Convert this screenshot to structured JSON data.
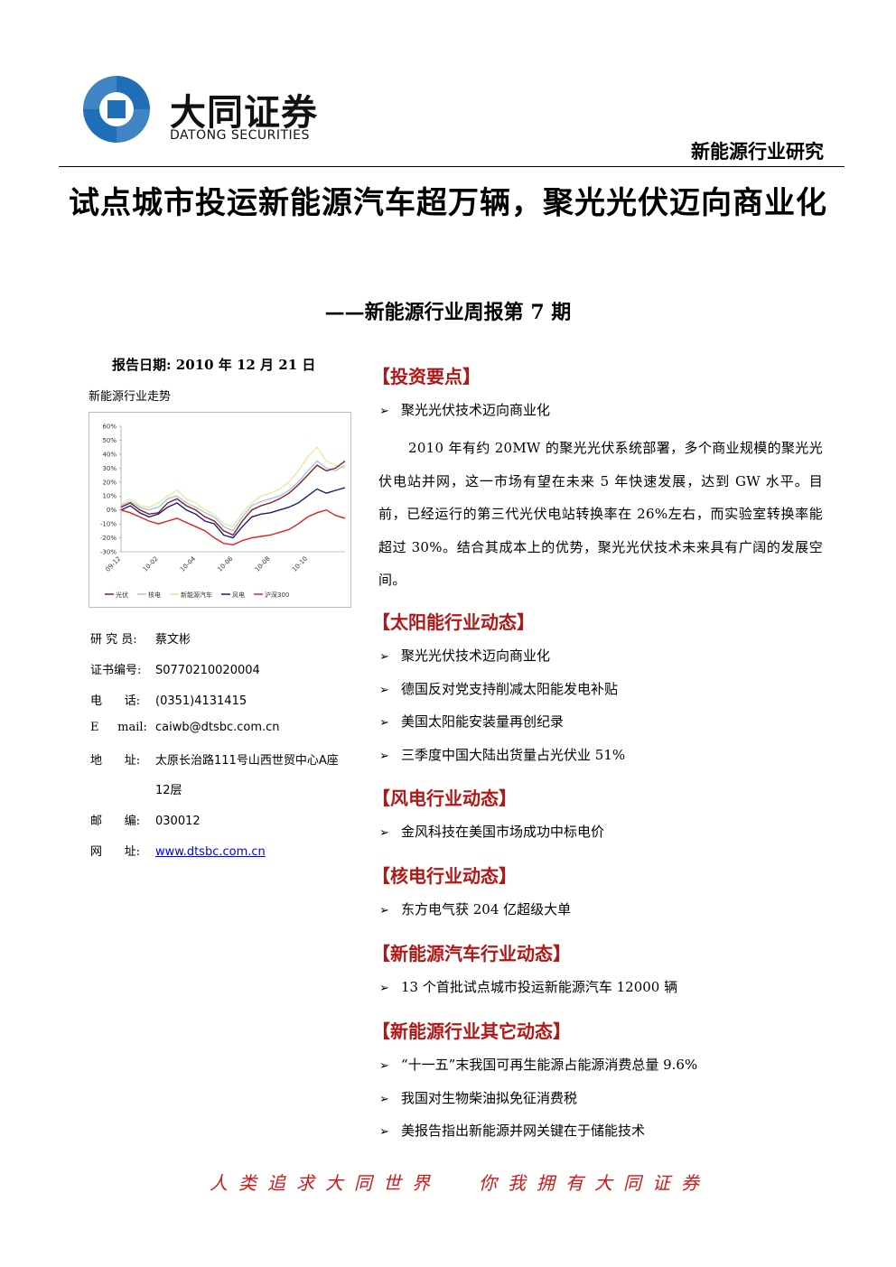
{
  "header": {
    "logo_cn": "大同证券",
    "logo_en": "DATONG SECURITIES",
    "category": "新能源行业研究"
  },
  "title": "试点城市投运新能源汽车超万辆，聚光光伏迈向商业化",
  "subtitle": "——新能源行业周报第 7 期",
  "report_date": "报告日期: 2010 年 12 月 21 日",
  "chart_caption": "新能源行业走势",
  "chart_data": {
    "type": "line",
    "categories": [
      "09-12",
      null,
      null,
      null,
      "10-02",
      null,
      null,
      null,
      "10-04",
      null,
      null,
      null,
      "10-06",
      null,
      null,
      null,
      "10-08",
      null,
      null,
      null,
      "10-10",
      null,
      null,
      null,
      null
    ],
    "ylim": [
      -30,
      60
    ],
    "yticks": [
      {
        "value": 60,
        "label": "60%"
      },
      {
        "value": 50,
        "label": "50%"
      },
      {
        "value": 40,
        "label": "40%"
      },
      {
        "value": 30,
        "label": "30%"
      },
      {
        "value": 20,
        "label": "20%"
      },
      {
        "value": 10,
        "label": "10%"
      },
      {
        "value": 0,
        "label": "0%"
      },
      {
        "value": -10,
        "label": "-10%"
      },
      {
        "value": -20,
        "label": "-20%"
      },
      {
        "value": -30,
        "label": "-30%"
      }
    ],
    "series": [
      {
        "name": "光伏",
        "color": "#8b1a1a",
        "values": [
          2,
          5,
          0,
          -3,
          -2,
          5,
          8,
          3,
          0,
          -5,
          -8,
          -15,
          -18,
          -8,
          0,
          3,
          5,
          8,
          12,
          18,
          25,
          32,
          28,
          30,
          35
        ]
      },
      {
        "name": "核电",
        "color": "#9ec8f0",
        "values": [
          3,
          6,
          2,
          0,
          2,
          8,
          10,
          5,
          2,
          -2,
          -5,
          -12,
          -15,
          -5,
          3,
          6,
          8,
          10,
          14,
          20,
          28,
          35,
          30,
          28,
          32
        ]
      },
      {
        "name": "新能源汽车",
        "color": "#efe6a0",
        "values": [
          4,
          8,
          3,
          2,
          5,
          10,
          14,
          8,
          5,
          0,
          -3,
          -10,
          -12,
          -2,
          5,
          10,
          12,
          15,
          20,
          28,
          38,
          45,
          35,
          32,
          30
        ]
      },
      {
        "name": "风电",
        "color": "#1a1a80",
        "values": [
          0,
          3,
          -2,
          -5,
          -3,
          2,
          5,
          0,
          -3,
          -8,
          -10,
          -18,
          -20,
          -12,
          -5,
          -3,
          -2,
          0,
          2,
          5,
          10,
          15,
          12,
          14,
          16
        ]
      },
      {
        "name": "沪深300",
        "color": "#e02020",
        "values": [
          0,
          -2,
          -5,
          -8,
          -10,
          -8,
          -6,
          -9,
          -12,
          -15,
          -20,
          -24,
          -25,
          -22,
          -20,
          -19,
          -18,
          -16,
          -14,
          -10,
          -5,
          -2,
          0,
          -4,
          -6
        ]
      }
    ]
  },
  "contacts": [
    {
      "label": "研 究 员:",
      "value": "蔡文彬"
    },
    {
      "label": "证书编号:",
      "value": "S0770210020004"
    },
    {
      "label": "电      话:",
      "value": "(0351)4131415"
    },
    {
      "label": "E     mail:",
      "value": "caiwb@dtsbc.com.cn"
    },
    {
      "label": "地      址:",
      "value": "太原长治路111号山西世贸中心A座"
    },
    {
      "label": null,
      "value": "12层"
    },
    {
      "label": "邮      编:",
      "value": "030012"
    },
    {
      "label": "网      址:",
      "value": "www.dtsbc.com.cn"
    }
  ],
  "sections": [
    {
      "title": "投资要点",
      "bullets": [
        "聚光光伏技术迈向商业化"
      ],
      "paragraph": "2010 年有约 20MW 的聚光光伏系统部署，多个商业规模的聚光光伏电站并网，这一市场有望在未来 5 年快速发展，达到 GW 水平。目前，已经运行的第三代光伏电站转换率在 26%左右，而实验室转换率能超过 30%。结合其成本上的优势，聚光光伏技术未来具有广阔的发展空间。"
    },
    {
      "title": "太阳能行业动态",
      "bullets": [
        "聚光光伏技术迈向商业化",
        "德国反对党支持削减太阳能发电补贴",
        "美国太阳能安装量再创纪录",
        "三季度中国大陆出货量占光伏业 51%"
      ]
    },
    {
      "title": "风电行业动态",
      "bullets": [
        "金风科技在美国市场成功中标电价"
      ]
    },
    {
      "title": "核电行业动态",
      "bullets": [
        "东方电气获 204 亿超级大单"
      ]
    },
    {
      "title": "新能源汽车行业动态",
      "bullets": [
        "13 个首批试点城市投运新能源汽车 12000 辆"
      ]
    },
    {
      "title": "新能源行业其它动态",
      "bullets": [
        "“十一五”末我国可再生能源占能源消费总量 9.6%",
        "我国对生物柴油拟免征消费税",
        "美报告指出新能源并网关键在于储能技术"
      ]
    }
  ],
  "footer": [
    "人类追求大同世界",
    "你我拥有大同证券"
  ]
}
